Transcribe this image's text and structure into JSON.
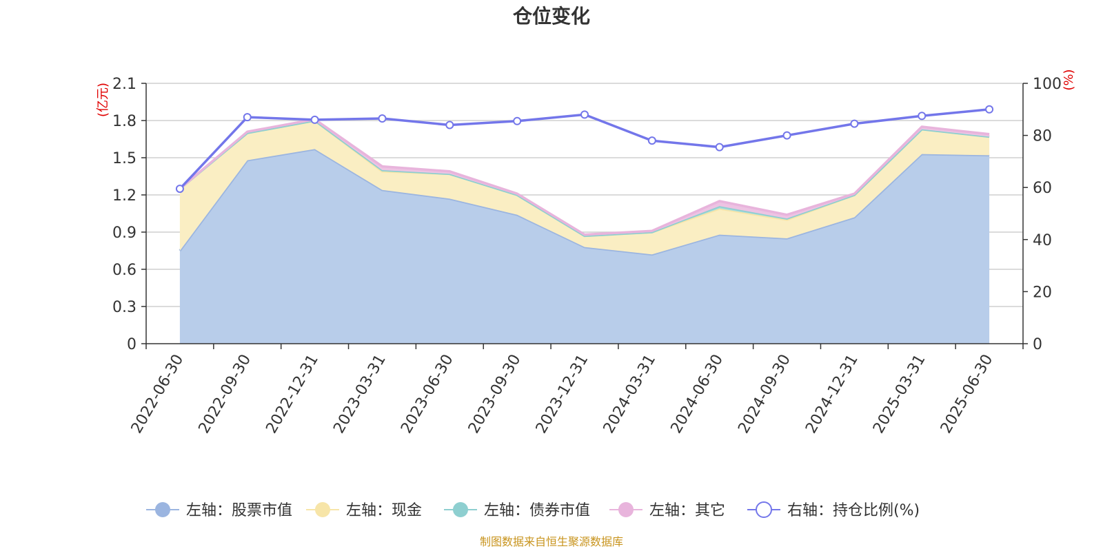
{
  "chart_data": {
    "type": "area",
    "title": "仓位变化",
    "categories": [
      "2022-06-30",
      "2022-09-30",
      "2022-12-31",
      "2023-03-31",
      "2023-06-30",
      "2023-09-30",
      "2023-12-31",
      "2024-03-31",
      "2024-06-30",
      "2024-09-30",
      "2024-12-31",
      "2025-03-31",
      "2025-06-30"
    ],
    "left_axis": {
      "unit": "(亿元)",
      "ticks": [
        "0",
        "0.3",
        "0.6",
        "0.9",
        "1.2",
        "1.5",
        "1.8",
        "2.1"
      ],
      "ylim": [
        0,
        2.1
      ]
    },
    "right_axis": {
      "unit": "(%)",
      "ticks": [
        "0",
        "20",
        "40",
        "60",
        "80",
        "100"
      ],
      "ylim": [
        0,
        100
      ]
    },
    "series": [
      {
        "name": "左轴：股票市值",
        "axis": "left",
        "kind": "stacked-area",
        "color": "#9bb5e0",
        "fill": "#b8cdea",
        "values": [
          0.75,
          1.48,
          1.57,
          1.24,
          1.17,
          1.04,
          0.78,
          0.72,
          0.88,
          0.85,
          1.02,
          1.53,
          1.52
        ]
      },
      {
        "name": "左轴：现金",
        "axis": "left",
        "kind": "stacked-area",
        "color": "#f7e5a8",
        "fill": "#faeec3",
        "values": [
          0.5,
          0.22,
          0.23,
          0.15,
          0.2,
          0.16,
          0.09,
          0.18,
          0.21,
          0.15,
          0.18,
          0.2,
          0.15
        ]
      },
      {
        "name": "左轴：债券市值",
        "axis": "left",
        "kind": "stacked-area",
        "color": "#8ecfd0",
        "fill": "#a6dbdc",
        "values": [
          0.0,
          0.0,
          0.0,
          0.01,
          0.0,
          0.0,
          0.0,
          0.0,
          0.02,
          0.01,
          0.0,
          0.0,
          0.0
        ]
      },
      {
        "name": "左轴：其它",
        "axis": "left",
        "kind": "stacked-area",
        "color": "#e8b4dc",
        "fill": "#edc3e3",
        "values": [
          0.0,
          0.01,
          0.01,
          0.03,
          0.02,
          0.01,
          0.01,
          0.01,
          0.04,
          0.03,
          0.01,
          0.02,
          0.02
        ]
      },
      {
        "name": "右轴：持仓比例(%)",
        "axis": "right",
        "kind": "line",
        "color": "#7376ea",
        "values": [
          59.5,
          87.0,
          86.0,
          86.5,
          84.0,
          85.5,
          88.0,
          78.0,
          75.5,
          80.0,
          84.5,
          87.5,
          90.0
        ]
      }
    ],
    "legend_position": "bottom",
    "grid": true
  },
  "source_text": "制图数据来自恒生聚源数据库"
}
